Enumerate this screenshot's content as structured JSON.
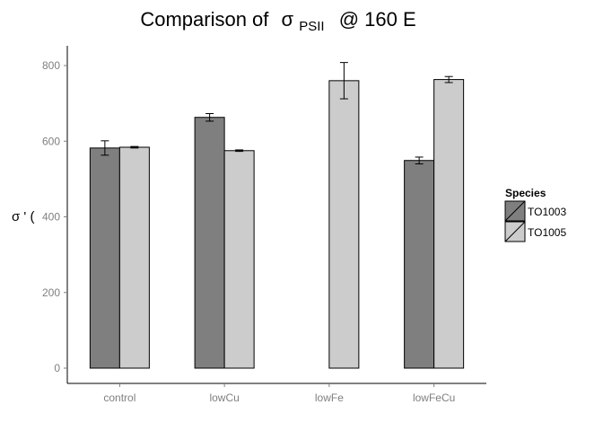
{
  "chart_data": {
    "type": "bar",
    "title": {
      "prefix": "Comparison of",
      "symbol": "σ",
      "subscript": "PSII",
      "suffix": "@ 160 E"
    },
    "ylabel": "σ ' (",
    "xlabel": "",
    "categories": [
      "control",
      "lowCu",
      "lowFe",
      "lowFeCu"
    ],
    "yticks": [
      0,
      200,
      400,
      600,
      800
    ],
    "ylim": [
      -38,
      852
    ],
    "grid": false,
    "legend": {
      "title": "Species",
      "placement": "right"
    },
    "series": [
      {
        "name": "TO1003",
        "color": "#7f7f7f",
        "values": [
          582,
          663,
          null,
          549
        ],
        "errors": [
          19,
          10,
          null,
          9
        ]
      },
      {
        "name": "TO1005",
        "color": "#cccccc",
        "values": [
          584,
          575,
          760,
          763
        ],
        "errors": [
          2,
          2,
          48,
          8
        ]
      }
    ]
  }
}
